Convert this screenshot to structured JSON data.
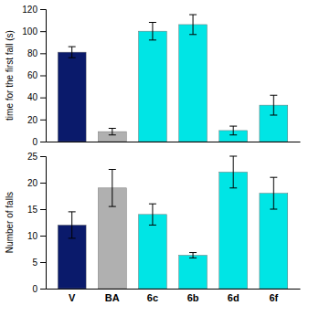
{
  "chart_data": [
    {
      "type": "bar",
      "categories": [
        "V",
        "BA",
        "6c",
        "6b",
        "6d",
        "6f"
      ],
      "values": [
        81,
        9,
        100,
        106,
        10,
        33
      ],
      "errors": [
        5,
        3,
        8,
        9,
        4,
        9
      ],
      "colors": [
        "#0a1a6b",
        "#b0b0b0",
        "#00e5e5",
        "#00e5e5",
        "#00e5e5",
        "#00e5e5"
      ],
      "ylabel": "time for the first fall (s)",
      "ylim": [
        0,
        120
      ],
      "yticks": [
        0,
        20,
        40,
        60,
        80,
        100,
        120
      ],
      "tick_labels": "y",
      "grid": false
    },
    {
      "type": "bar",
      "categories": [
        "V",
        "BA",
        "6c",
        "6b",
        "6d",
        "6f"
      ],
      "values": [
        12,
        19,
        14,
        6.3,
        22,
        18
      ],
      "errors": [
        2.5,
        3.5,
        2,
        0.5,
        3,
        3
      ],
      "colors": [
        "#0a1a6b",
        "#b0b0b0",
        "#00e5e5",
        "#00e5e5",
        "#00e5e5",
        "#00e5e5"
      ],
      "ylabel": "Number of falls",
      "ylim": [
        0,
        25
      ],
      "yticks": [
        0,
        5,
        10,
        15,
        20,
        25
      ],
      "grid": false
    }
  ]
}
